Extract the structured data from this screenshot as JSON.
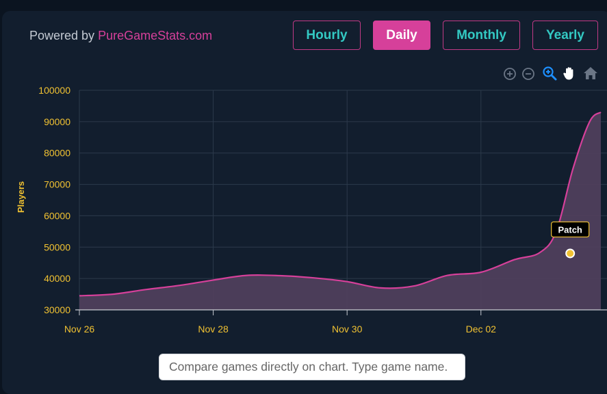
{
  "header": {
    "powered_prefix": "Powered by ",
    "powered_brand": "PureGameStats.com"
  },
  "range_buttons": [
    {
      "label": "Hourly",
      "active": false
    },
    {
      "label": "Daily",
      "active": true
    },
    {
      "label": "Monthly",
      "active": false
    },
    {
      "label": "Yearly",
      "active": false
    }
  ],
  "toolbar": [
    "zoom-in-icon",
    "zoom-out-icon",
    "zoom-select-icon",
    "pan-icon",
    "reset-home-icon"
  ],
  "compare": {
    "placeholder": "Compare games directly on chart. Type game name."
  },
  "colors": {
    "line": "#d6409a",
    "area": "#4f3f5c",
    "axis_text": "#f1c232",
    "active_button": "#d6409a",
    "button_text": "#33c9c3"
  },
  "chart_data": {
    "type": "area",
    "title": "",
    "ylabel": "Players",
    "xlabel": "",
    "ylim": [
      30000,
      100000
    ],
    "y_ticks": [
      30000,
      40000,
      50000,
      60000,
      70000,
      80000,
      90000,
      100000
    ],
    "x_ticks": [
      {
        "date": "2023-11-26",
        "label": "Nov 26"
      },
      {
        "date": "2023-11-28",
        "label": "Nov 28"
      },
      {
        "date": "2023-11-30",
        "label": "Nov 30"
      },
      {
        "date": "2023-12-02",
        "label": "Dec 02"
      }
    ],
    "xlim": [
      "2023-11-26",
      "2023-12-03T19:00"
    ],
    "series": [
      {
        "values": [
          [
            "2023-11-26T00:00",
            34500
          ],
          [
            "2023-11-26T12:00",
            35000
          ],
          [
            "2023-11-27T00:00",
            36500
          ],
          [
            "2023-11-27T12:00",
            37800
          ],
          [
            "2023-11-28T00:00",
            39500
          ],
          [
            "2023-11-28T12:00",
            41000
          ],
          [
            "2023-11-29T00:00",
            40900
          ],
          [
            "2023-11-29T12:00",
            40200
          ],
          [
            "2023-11-30T00:00",
            39000
          ],
          [
            "2023-11-30T12:00",
            37000
          ],
          [
            "2023-12-01T00:00",
            37600
          ],
          [
            "2023-12-01T12:00",
            41000
          ],
          [
            "2023-12-02T00:00",
            42000
          ],
          [
            "2023-12-02T12:00",
            46000
          ],
          [
            "2023-12-02T21:00",
            48200
          ],
          [
            "2023-12-03T03:00",
            55000
          ],
          [
            "2023-12-03T09:00",
            75000
          ],
          [
            "2023-12-03T15:00",
            90000
          ],
          [
            "2023-12-03T19:00",
            93000
          ]
        ]
      }
    ],
    "annotations": [
      {
        "label": "Patch",
        "date": "2023-12-03T08:00",
        "value": 48000
      }
    ],
    "grid": true
  }
}
